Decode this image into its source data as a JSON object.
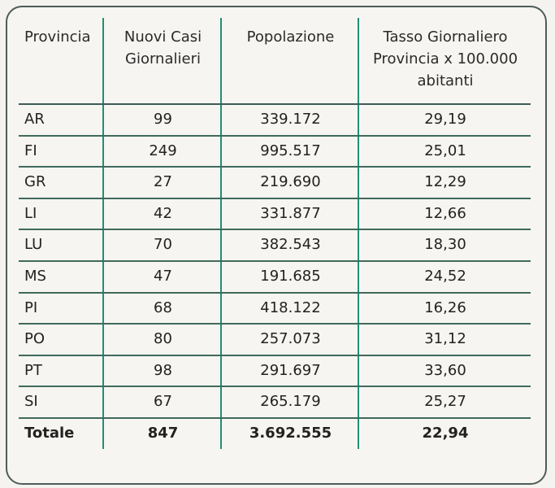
{
  "table": {
    "headers": [
      "Provincia",
      "Nuovi Casi\nGiornalieri",
      "Popolazione",
      "Tasso Giornaliero\nProvincia x 100.000\nabitanti"
    ],
    "header_lines": {
      "h0": [
        "Provincia"
      ],
      "h1": [
        "Nuovi Casi",
        "Giornalieri"
      ],
      "h2": [
        "Popolazione"
      ],
      "h3": [
        "Tasso Giornaliero",
        "Provincia x 100.000",
        "abitanti"
      ]
    },
    "rows": [
      {
        "provincia": "AR",
        "nuovi_casi": "99",
        "popolazione": "339.172",
        "tasso": "29,19"
      },
      {
        "provincia": "FI",
        "nuovi_casi": "249",
        "popolazione": "995.517",
        "tasso": "25,01"
      },
      {
        "provincia": "GR",
        "nuovi_casi": "27",
        "popolazione": "219.690",
        "tasso": "12,29"
      },
      {
        "provincia": "LI",
        "nuovi_casi": "42",
        "popolazione": "331.877",
        "tasso": "12,66"
      },
      {
        "provincia": "LU",
        "nuovi_casi": "70",
        "popolazione": "382.543",
        "tasso": "18,30"
      },
      {
        "provincia": "MS",
        "nuovi_casi": "47",
        "popolazione": "191.685",
        "tasso": "24,52"
      },
      {
        "provincia": "PI",
        "nuovi_casi": "68",
        "popolazione": "418.122",
        "tasso": "16,26"
      },
      {
        "provincia": "PO",
        "nuovi_casi": "80",
        "popolazione": "257.073",
        "tasso": "31,12"
      },
      {
        "provincia": "PT",
        "nuovi_casi": "98",
        "popolazione": "291.697",
        "tasso": "33,60"
      },
      {
        "provincia": "SI",
        "nuovi_casi": "67",
        "popolazione": "265.179",
        "tasso": "25,27"
      }
    ],
    "total": {
      "provincia": "Totale",
      "nuovi_casi": "847",
      "popolazione": "3.692.555",
      "tasso": "22,94"
    }
  },
  "colors": {
    "background": "#f5f3ef",
    "frame_border": "#4d5c5a",
    "column_divider": "#1f8f77",
    "row_divider": "#3f6a5e"
  }
}
